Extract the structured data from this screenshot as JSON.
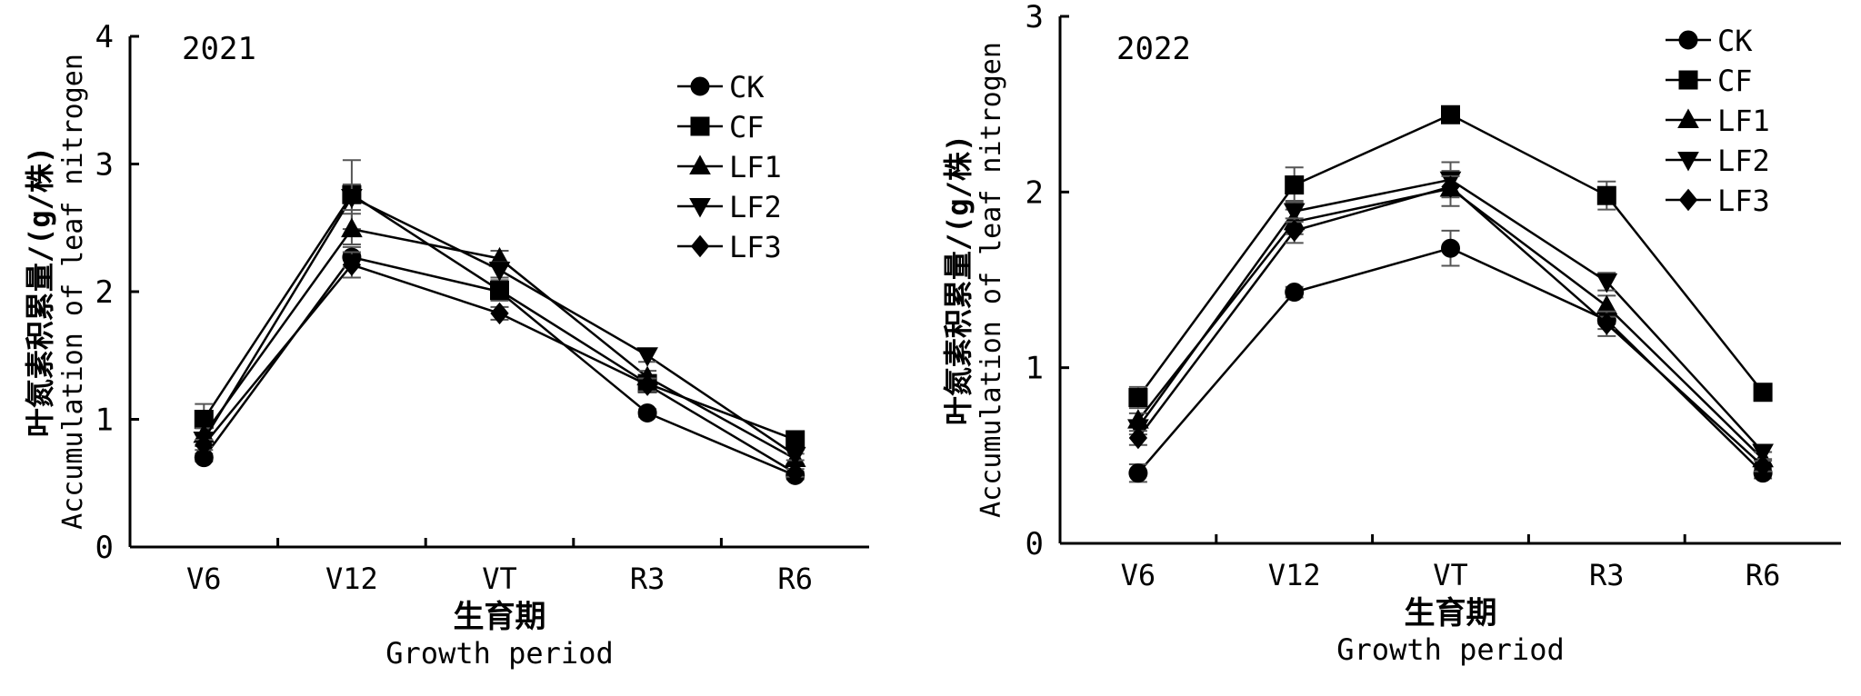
{
  "chart_data": [
    {
      "type": "line",
      "title": "2021",
      "ylabel_cn": "叶氮素积累量/(g/株)",
      "ylabel_en": "Accumulation of leaf nitrogen",
      "xlabel_cn": "生育期",
      "xlabel_en": "Growth period",
      "categories": [
        "V6",
        "V12",
        "VT",
        "R3",
        "R6"
      ],
      "ylim": [
        0,
        4
      ],
      "yticks": [
        "0",
        "1",
        "2",
        "3",
        "4"
      ],
      "legend_position": "top-right",
      "series": [
        {
          "name": "CK",
          "marker": "circle",
          "values": [
            0.7,
            2.27,
            2.0,
            1.05,
            0.56
          ],
          "errors": [
            0.03,
            0.08,
            0.05,
            0.03,
            0.03
          ]
        },
        {
          "name": "CF",
          "marker": "square",
          "values": [
            1.0,
            2.76,
            2.01,
            1.28,
            0.84
          ],
          "errors": [
            0.12,
            0.27,
            0.08,
            0.06,
            0.04
          ]
        },
        {
          "name": "LF1",
          "marker": "triangle",
          "values": [
            0.88,
            2.49,
            2.26,
            1.33,
            0.69
          ],
          "errors": [
            0.05,
            0.12,
            0.06,
            0.05,
            0.04
          ]
        },
        {
          "name": "LF2",
          "marker": "tri-down",
          "values": [
            0.84,
            2.74,
            2.17,
            1.5,
            0.72
          ],
          "errors": [
            0.05,
            0.1,
            0.06,
            0.05,
            0.04
          ]
        },
        {
          "name": "LF3",
          "marker": "diamond",
          "values": [
            0.8,
            2.21,
            1.83,
            1.27,
            0.58
          ],
          "errors": [
            0.04,
            0.1,
            0.05,
            0.05,
            0.03
          ]
        }
      ]
    },
    {
      "type": "line",
      "title": "2022",
      "ylabel_cn": "叶氮素积累量/(g/株)",
      "ylabel_en": "Accumulation of leaf nitrogen",
      "xlabel_cn": "生育期",
      "xlabel_en": "Growth period",
      "categories": [
        "V6",
        "V12",
        "VT",
        "R3",
        "R6"
      ],
      "ylim": [
        0,
        3
      ],
      "yticks": [
        "0",
        "1",
        "2",
        "3"
      ],
      "legend_position": "top-right",
      "series": [
        {
          "name": "CK",
          "marker": "circle",
          "values": [
            0.4,
            1.43,
            1.68,
            1.27,
            0.4
          ],
          "errors": [
            0.05,
            0.03,
            0.1,
            0.05,
            0.03
          ]
        },
        {
          "name": "CF",
          "marker": "square",
          "values": [
            0.83,
            2.04,
            2.44,
            1.98,
            0.86
          ],
          "errors": [
            0.06,
            0.1,
            0.04,
            0.08,
            0.03
          ]
        },
        {
          "name": "LF1",
          "marker": "triangle",
          "values": [
            0.7,
            1.83,
            2.02,
            1.35,
            0.48
          ],
          "errors": [
            0.04,
            0.07,
            0.1,
            0.06,
            0.04
          ]
        },
        {
          "name": "LF2",
          "marker": "tri-down",
          "values": [
            0.66,
            1.89,
            2.07,
            1.49,
            0.52
          ],
          "errors": [
            0.04,
            0.06,
            0.1,
            0.05,
            0.04
          ]
        },
        {
          "name": "LF3",
          "marker": "diamond",
          "values": [
            0.6,
            1.78,
            2.03,
            1.25,
            0.44
          ],
          "errors": [
            0.04,
            0.07,
            0.06,
            0.07,
            0.03
          ]
        }
      ]
    }
  ]
}
